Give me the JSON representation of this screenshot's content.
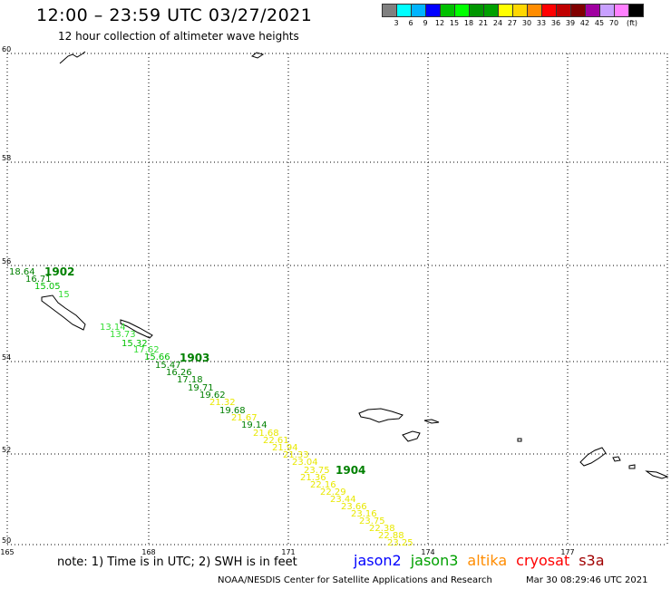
{
  "header": {
    "title": "12:00 – 23:59 UTC 03/27/2021",
    "subtitle": "12 hour collection of altimeter wave heights"
  },
  "legend": {
    "swatches": [
      {
        "color": "#808080",
        "label": ""
      },
      {
        "color": "#00ffff",
        "label": "3"
      },
      {
        "color": "#00b4ff",
        "label": "6"
      },
      {
        "color": "#0000ff",
        "label": "9"
      },
      {
        "color": "#00c000",
        "label": "12"
      },
      {
        "color": "#00ff00",
        "label": "15"
      },
      {
        "color": "#009600",
        "label": "18"
      },
      {
        "color": "#00a000",
        "label": "21"
      },
      {
        "color": "#ffff00",
        "label": "24"
      },
      {
        "color": "#ffd700",
        "label": "27"
      },
      {
        "color": "#ff8c00",
        "label": "30"
      },
      {
        "color": "#ff0000",
        "label": "33"
      },
      {
        "color": "#c00000",
        "label": "36"
      },
      {
        "color": "#800000",
        "label": "39"
      },
      {
        "color": "#a000a0",
        "label": "42"
      },
      {
        "color": "#c8a0ff",
        "label": "45"
      },
      {
        "color": "#ff80ff",
        "label": "70"
      },
      {
        "color": "#000000",
        "label": ""
      }
    ],
    "unit": "(ft)"
  },
  "map": {
    "lat_labels": [
      "60",
      "58",
      "56",
      "54",
      "52",
      "50"
    ],
    "lon_labels": [
      "165",
      "168",
      "171",
      "174",
      "177"
    ],
    "grid_color": "#000000"
  },
  "time_labels": [
    {
      "text": "1902",
      "color": "#008000"
    },
    {
      "text": "1903",
      "color": "#008000"
    },
    {
      "text": "1904",
      "color": "#008000"
    }
  ],
  "observations": [
    {
      "text": "18.64",
      "color": "#008000"
    },
    {
      "text": "16.71",
      "color": "#008000"
    },
    {
      "text": "15.05",
      "color": "#00c000"
    },
    {
      "text": "15",
      "color": "#33dd33"
    },
    {
      "text": "13.14",
      "color": "#33dd33"
    },
    {
      "text": "13.73",
      "color": "#33dd33"
    },
    {
      "text": "15.32",
      "color": "#00c000"
    },
    {
      "text": "17.62",
      "color": "#33dd33"
    },
    {
      "text": "15.66",
      "color": "#00c000"
    },
    {
      "text": "15.47",
      "color": "#008000"
    },
    {
      "text": "16.26",
      "color": "#008000"
    },
    {
      "text": "17.18",
      "color": "#008000"
    },
    {
      "text": "19.71",
      "color": "#008000"
    },
    {
      "text": "19.62",
      "color": "#008000"
    },
    {
      "text": "21.32",
      "color": "#e8e800"
    },
    {
      "text": "19.68",
      "color": "#008000"
    },
    {
      "text": "21.67",
      "color": "#e8e800"
    },
    {
      "text": "19.14",
      "color": "#008000"
    },
    {
      "text": "21.68",
      "color": "#e8e800"
    },
    {
      "text": "22.61",
      "color": "#e8e800"
    },
    {
      "text": "21.94",
      "color": "#e8e800"
    },
    {
      "text": "21.33",
      "color": "#e8e800"
    },
    {
      "text": "23.04",
      "color": "#e8e800"
    },
    {
      "text": "23.75",
      "color": "#e8e800"
    },
    {
      "text": "21.36",
      "color": "#e8e800"
    },
    {
      "text": "22.16",
      "color": "#e8e800"
    },
    {
      "text": "22.29",
      "color": "#e8e800"
    },
    {
      "text": "23.44",
      "color": "#e8e800"
    },
    {
      "text": "23.66",
      "color": "#e8e800"
    },
    {
      "text": "23.16",
      "color": "#e8e800"
    },
    {
      "text": "23.75",
      "color": "#e8e800"
    },
    {
      "text": "22.38",
      "color": "#e8e800"
    },
    {
      "text": "22.88",
      "color": "#e8e800"
    },
    {
      "text": "23.25",
      "color": "#e8e800"
    }
  ],
  "footer": {
    "note": "note: 1) Time is in UTC; 2) SWH is in feet",
    "satellites": [
      {
        "name": "jason2",
        "color": "#0000ff"
      },
      {
        "name": "jason3",
        "color": "#00a000"
      },
      {
        "name": "altika",
        "color": "#ff8c00"
      },
      {
        "name": "cryosat",
        "color": "#ff0000"
      },
      {
        "name": "s3a",
        "color": "#a00000"
      }
    ],
    "source": "NOAA/NESDIS Center for Satellite Applications and Research",
    "timestamp": "Mar 30 08:29:46 UTC 2021"
  }
}
